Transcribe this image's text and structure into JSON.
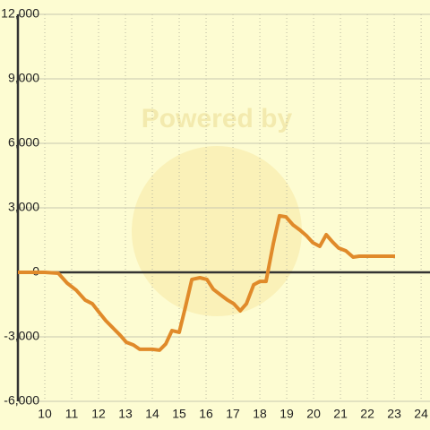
{
  "chart_data": {
    "type": "line",
    "watermark": "Powered by",
    "color": "#e08a2a",
    "background": "#fdfcd2",
    "grid": true,
    "xlim": [
      9,
      24.33
    ],
    "ylim": [
      -6000,
      12000
    ],
    "xticks": [
      10,
      11,
      12,
      13,
      14,
      15,
      16,
      17,
      18,
      19,
      20,
      21,
      22,
      23,
      24
    ],
    "yticks": [
      {
        "value": -6000,
        "label": "-6,000"
      },
      {
        "value": -3000,
        "label": "-3,000"
      },
      0,
      {
        "value": 3000,
        "label": "3,000"
      },
      {
        "value": 6000,
        "label": "6,000"
      },
      {
        "value": 9000,
        "label": "9,000"
      },
      {
        "value": 12000,
        "label": "12,000"
      }
    ],
    "x": [
      9,
      10,
      10.5,
      10.83,
      11.17,
      11.5,
      11.77,
      12,
      12.27,
      12.57,
      12.8,
      13.03,
      13.3,
      13.53,
      14,
      14.27,
      14.5,
      14.73,
      15,
      15.23,
      15.47,
      15.77,
      16.03,
      16.27,
      16.53,
      16.8,
      17.03,
      17.27,
      17.5,
      17.77,
      18,
      18.23,
      18.5,
      18.73,
      18.97,
      19.23,
      19.5,
      19.73,
      19.97,
      20.23,
      20.47,
      20.7,
      20.93,
      21.2,
      21.47,
      21.7,
      23.03
    ],
    "series": [
      {
        "values": [
          0,
          0,
          -40,
          -500,
          -830,
          -1290,
          -1460,
          -1830,
          -2250,
          -2630,
          -2920,
          -3250,
          -3380,
          -3580,
          -3580,
          -3620,
          -3330,
          -2710,
          -2790,
          -1620,
          -330,
          -250,
          -330,
          -790,
          -1040,
          -1290,
          -1460,
          -1790,
          -1460,
          -580,
          -420,
          -420,
          1330,
          2630,
          2580,
          2210,
          1960,
          1710,
          1380,
          1210,
          1750,
          1420,
          1130,
          1000,
          710,
          750,
          750
        ]
      }
    ]
  }
}
